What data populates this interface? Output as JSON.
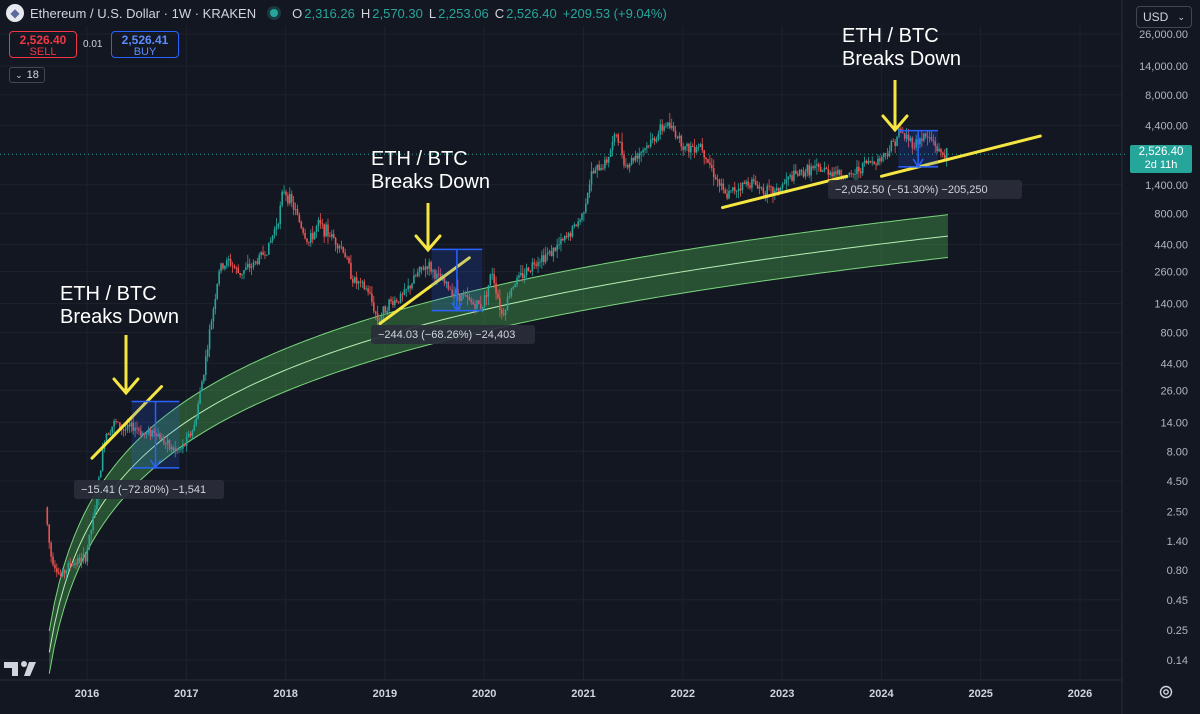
{
  "header": {
    "symbol_title": "Ethereum / U.S. Dollar · 1W · KRAKEN",
    "ohlc": [
      {
        "key": "O",
        "value": "2,316.26"
      },
      {
        "key": "H",
        "value": "2,570.30"
      },
      {
        "key": "L",
        "value": "2,253.06"
      },
      {
        "key": "C",
        "value": "2,526.40"
      }
    ],
    "change": "+209.53 (+9.04%)"
  },
  "trade": {
    "sell_price": "2,526.40",
    "sell_label": "SELL",
    "spread": "0.01",
    "buy_price": "2,526.41",
    "buy_label": "BUY"
  },
  "indicators": {
    "count": "18"
  },
  "currency": {
    "value": "USD"
  },
  "price_badge": {
    "price": "2,526.40",
    "countdown": "2d 11h"
  },
  "colors": {
    "background": "#131722",
    "up": "#26a69a",
    "down": "#ef5350",
    "trendline": "#f5e642",
    "band": "#4caf50",
    "measure": "#2962ff"
  },
  "chart_data": {
    "type": "candlestick",
    "y_scale": "log",
    "ylim": [
      0.1,
      40000
    ],
    "x_ticks": [
      "2016",
      "2017",
      "2018",
      "2019",
      "2020",
      "2021",
      "2022",
      "2023",
      "2024",
      "2025",
      "2026"
    ],
    "y_ticks": [
      "26,000.00",
      "14,000.00",
      "8,000.00",
      "4,400.00",
      "1,400.00",
      "800.00",
      "440.00",
      "260.00",
      "140.00",
      "80.00",
      "44.00",
      "26.00",
      "14.00",
      "8.00",
      "4.50",
      "2.50",
      "1.40",
      "0.80",
      "0.45",
      "0.25",
      "0.14"
    ],
    "last_price": "2,526.40",
    "annotations": [
      {
        "name": "annotation-1",
        "line1": "ETH / BTC",
        "line2": "Breaks Down"
      },
      {
        "name": "annotation-2",
        "line1": "ETH / BTC",
        "line2": "Breaks Down"
      },
      {
        "name": "annotation-3",
        "line1": "ETH / BTC",
        "line2": "Breaks Down"
      }
    ],
    "measurements": [
      {
        "name": "measure-2016",
        "label": "−15.41 (−72.80%) −1,541"
      },
      {
        "name": "measure-2019",
        "label": "−244.03 (−68.26%) −24,403"
      },
      {
        "name": "measure-2024",
        "label": "−2,052.50 (−51.30%) −205,250"
      }
    ]
  }
}
